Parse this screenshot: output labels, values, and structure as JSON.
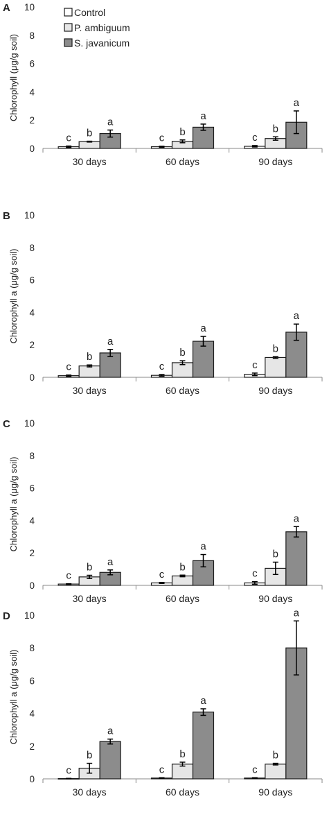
{
  "legend": {
    "entries": [
      {
        "name": "Control",
        "color": "#ffffff"
      },
      {
        "name": "P. ambiguum",
        "color": "#e6e6e6"
      },
      {
        "name": "S. javanicum",
        "color": "#8c8c8c"
      }
    ]
  },
  "chart_data": [
    {
      "type": "bar",
      "panel": "A",
      "ylabel": "Chlorophyll (μg/g soil)",
      "ylim": [
        0,
        10
      ],
      "yticks": [
        "0",
        "2",
        "4",
        "6",
        "8",
        "10"
      ],
      "categories": [
        "30 days",
        "60 days",
        "90 days"
      ],
      "series": [
        {
          "name": "Control",
          "values": [
            0.12,
            0.12,
            0.15
          ],
          "errors": [
            0.05,
            0.04,
            0.05
          ],
          "letters": [
            "c",
            "c",
            "c"
          ]
        },
        {
          "name": "P. ambiguum",
          "values": [
            0.48,
            0.5,
            0.7
          ],
          "errors": [
            0.03,
            0.1,
            0.12
          ],
          "letters": [
            "b",
            "b",
            "b"
          ]
        },
        {
          "name": "S. javanicum",
          "values": [
            1.05,
            1.5,
            1.85
          ],
          "errors": [
            0.25,
            0.22,
            0.8
          ],
          "letters": [
            "a",
            "a",
            "a"
          ]
        }
      ]
    },
    {
      "type": "bar",
      "panel": "B",
      "ylabel": "Chlorophyll a (μg/g soil)",
      "ylim": [
        0,
        10
      ],
      "yticks": [
        "0",
        "2",
        "4",
        "6",
        "8",
        "10"
      ],
      "categories": [
        "30 days",
        "60 days",
        "90 days"
      ],
      "series": [
        {
          "name": "Control",
          "values": [
            0.1,
            0.12,
            0.18
          ],
          "errors": [
            0.04,
            0.05,
            0.08
          ],
          "letters": [
            "c",
            "c",
            "c"
          ]
        },
        {
          "name": "P. ambiguum",
          "values": [
            0.7,
            0.9,
            1.22
          ],
          "errors": [
            0.06,
            0.12,
            0.05
          ],
          "letters": [
            "b",
            "b",
            "b"
          ]
        },
        {
          "name": "S. javanicum",
          "values": [
            1.5,
            2.22,
            2.78
          ],
          "errors": [
            0.22,
            0.3,
            0.5
          ],
          "letters": [
            "a",
            "a",
            "a"
          ]
        }
      ]
    },
    {
      "type": "bar",
      "panel": "C",
      "ylabel": "Chlorophyll a (μg/g soil)",
      "ylim": [
        0,
        10
      ],
      "yticks": [
        "0",
        "2",
        "4",
        "6",
        "8",
        "10"
      ],
      "categories": [
        "30 days",
        "60 days",
        "90 days"
      ],
      "series": [
        {
          "name": "Control",
          "values": [
            0.08,
            0.15,
            0.15
          ],
          "errors": [
            0.02,
            0.03,
            0.08
          ],
          "letters": [
            "c",
            "c",
            "c"
          ]
        },
        {
          "name": "P. ambiguum",
          "values": [
            0.52,
            0.58,
            1.05
          ],
          "errors": [
            0.1,
            0.05,
            0.38
          ],
          "letters": [
            "b",
            "b",
            "b"
          ]
        },
        {
          "name": "S. javanicum",
          "values": [
            0.8,
            1.52,
            3.3
          ],
          "errors": [
            0.15,
            0.38,
            0.32
          ],
          "letters": [
            "a",
            "a",
            "a"
          ]
        }
      ]
    },
    {
      "type": "bar",
      "panel": "D",
      "ylabel": "Chlorophyll a (μg/g soil)",
      "ylim": [
        0,
        10
      ],
      "yticks": [
        "0",
        "2",
        "4",
        "6",
        "8",
        "10"
      ],
      "categories": [
        "30 days",
        "60 days",
        "90 days"
      ],
      "series": [
        {
          "name": "Control",
          "values": [
            0.02,
            0.05,
            0.05
          ],
          "errors": [
            0.01,
            0.02,
            0.02
          ],
          "letters": [
            "c",
            "c",
            "c"
          ]
        },
        {
          "name": "P. ambiguum",
          "values": [
            0.65,
            0.9,
            0.9
          ],
          "errors": [
            0.3,
            0.12,
            0.05
          ],
          "letters": [
            "b",
            "b",
            "b"
          ]
        },
        {
          "name": "S. javanicum",
          "values": [
            2.28,
            4.08,
            8.0
          ],
          "errors": [
            0.15,
            0.2,
            1.65
          ],
          "letters": [
            "a",
            "a",
            "a"
          ]
        }
      ]
    }
  ]
}
